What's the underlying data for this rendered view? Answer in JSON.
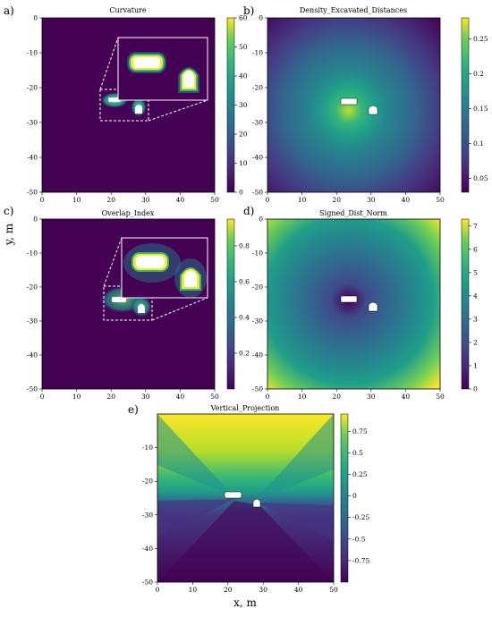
{
  "figure": {
    "shared_ylabel": "y, m",
    "shared_xlabel": "x, m"
  },
  "chart_data": [
    {
      "type": "heatmap",
      "panel_label": "a)",
      "title": "Curvature",
      "xlim": [
        0,
        50
      ],
      "ylim": [
        -50,
        0
      ],
      "x_ticks": [
        0,
        10,
        20,
        30,
        40,
        50
      ],
      "y_ticks": [
        0,
        -10,
        -20,
        -30,
        -40,
        -50
      ],
      "colorbar_range": [
        0,
        60
      ],
      "colorbar_ticks": [
        0,
        10,
        20,
        30,
        40,
        50,
        60
      ],
      "colormap": "viridis",
      "inset_zoom": true
    },
    {
      "type": "heatmap",
      "panel_label": "b)",
      "title": "Density_Excavated_Distances",
      "xlim": [
        0,
        50
      ],
      "ylim": [
        -50,
        0
      ],
      "x_ticks": [
        0,
        10,
        20,
        30,
        40,
        50
      ],
      "y_ticks": [
        0,
        -10,
        -20,
        -30,
        -40,
        -50
      ],
      "colorbar_range": [
        0.03,
        0.28
      ],
      "colorbar_ticks": [
        0.05,
        0.1,
        0.15,
        0.2,
        0.25
      ],
      "colormap": "viridis",
      "inset_zoom": false
    },
    {
      "type": "heatmap",
      "panel_label": "c)",
      "title": "Overlap_Index",
      "xlim": [
        0,
        50
      ],
      "ylim": [
        -50,
        0
      ],
      "x_ticks": [
        0,
        10,
        20,
        30,
        40,
        50
      ],
      "y_ticks": [
        0,
        -10,
        -20,
        -30,
        -40,
        -50
      ],
      "colorbar_range": [
        0,
        0.95
      ],
      "colorbar_ticks": [
        0.2,
        0.4,
        0.6,
        0.8
      ],
      "colormap": "viridis",
      "inset_zoom": true
    },
    {
      "type": "heatmap",
      "panel_label": "d)",
      "title": "Signed_Dist_Norm",
      "xlim": [
        0,
        50
      ],
      "ylim": [
        -50,
        0
      ],
      "x_ticks": [
        0,
        10,
        20,
        30,
        40,
        50
      ],
      "y_ticks": [
        0,
        -10,
        -20,
        -30,
        -40,
        -50
      ],
      "colorbar_range": [
        0,
        7.3
      ],
      "colorbar_ticks": [
        0,
        1,
        2,
        3,
        4,
        5,
        6,
        7
      ],
      "colormap": "viridis",
      "inset_zoom": false
    },
    {
      "type": "heatmap",
      "panel_label": "e)",
      "title": "Vertical_Projection",
      "xlim": [
        0,
        50
      ],
      "ylim": [
        -50,
        0
      ],
      "x_ticks": [
        0,
        10,
        20,
        30,
        40,
        50
      ],
      "y_ticks": [
        -10,
        -20,
        -30,
        -40,
        -50
      ],
      "colorbar_range": [
        -1,
        0.95
      ],
      "colorbar_ticks": [
        0.75,
        0.5,
        0.25,
        0,
        -0.25,
        -0.5,
        -0.75
      ],
      "colormap": "viridis",
      "inset_zoom": false
    }
  ]
}
